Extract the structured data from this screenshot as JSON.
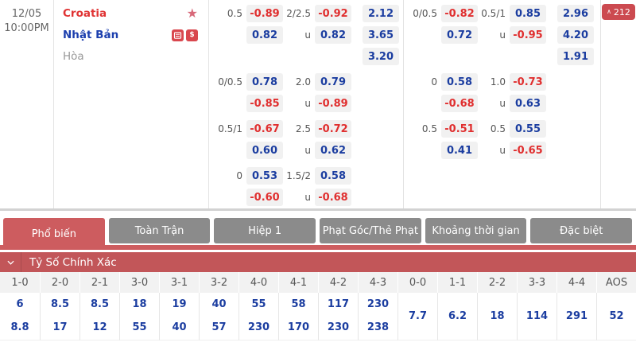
{
  "match": {
    "date": "12/05",
    "time": "10:00PM",
    "teams": [
      {
        "name": "Croatia"
      },
      {
        "name": "Nhật Bản"
      },
      {
        "name": "Hòa"
      }
    ],
    "more_markets": {
      "count": "212"
    }
  },
  "odds_panel": {
    "groups_left": [
      {
        "lines": [
          {
            "hdp_line": "0.5",
            "hdp": {
              "v": "-0.89",
              "c": "red"
            },
            "ou_line": "2/2.5",
            "ou": {
              "v": "-0.92",
              "c": "red"
            },
            "x2": "2.12"
          },
          {
            "hdp_line": "",
            "hdp": {
              "v": "0.82",
              "c": "blue"
            },
            "ou_line": "u",
            "ou": {
              "v": "0.82",
              "c": "blue"
            },
            "x2": "3.65"
          },
          {
            "hdp_line": "",
            "ou_line": "",
            "x2": "3.20"
          }
        ]
      },
      {
        "lines": [
          {
            "hdp_line": "0/0.5",
            "hdp": {
              "v": "0.78",
              "c": "blue"
            },
            "ou_line": "2.0",
            "ou": {
              "v": "0.79",
              "c": "blue"
            }
          },
          {
            "hdp_line": "",
            "hdp": {
              "v": "-0.85",
              "c": "red"
            },
            "ou_line": "u",
            "ou": {
              "v": "-0.89",
              "c": "red"
            }
          }
        ]
      },
      {
        "lines": [
          {
            "hdp_line": "0.5/1",
            "hdp": {
              "v": "-0.67",
              "c": "red"
            },
            "ou_line": "2.5",
            "ou": {
              "v": "-0.72",
              "c": "red"
            }
          },
          {
            "hdp_line": "",
            "hdp": {
              "v": "0.60",
              "c": "blue"
            },
            "ou_line": "u",
            "ou": {
              "v": "0.62",
              "c": "blue"
            }
          }
        ]
      },
      {
        "lines": [
          {
            "hdp_line": "0",
            "hdp": {
              "v": "0.53",
              "c": "blue"
            },
            "ou_line": "1.5/2",
            "ou": {
              "v": "0.58",
              "c": "blue"
            }
          },
          {
            "hdp_line": "",
            "hdp": {
              "v": "-0.60",
              "c": "red"
            },
            "ou_line": "u",
            "ou": {
              "v": "-0.68",
              "c": "red"
            }
          }
        ]
      }
    ],
    "groups_right": [
      {
        "lines": [
          {
            "hdp_line": "0/0.5",
            "hdp": {
              "v": "-0.82",
              "c": "red"
            },
            "ou_line": "0.5/1",
            "ou": {
              "v": "0.85",
              "c": "blue"
            },
            "x2": "2.96"
          },
          {
            "hdp_line": "",
            "hdp": {
              "v": "0.72",
              "c": "blue"
            },
            "ou_line": "u",
            "ou": {
              "v": "-0.95",
              "c": "red"
            },
            "x2": "4.20"
          },
          {
            "hdp_line": "",
            "ou_line": "",
            "x2": "1.91"
          }
        ]
      },
      {
        "lines": [
          {
            "hdp_line": "0",
            "hdp": {
              "v": "0.58",
              "c": "blue"
            },
            "ou_line": "1.0",
            "ou": {
              "v": "-0.73",
              "c": "red"
            }
          },
          {
            "hdp_line": "",
            "hdp": {
              "v": "-0.68",
              "c": "red"
            },
            "ou_line": "u",
            "ou": {
              "v": "0.63",
              "c": "blue"
            }
          }
        ]
      },
      {
        "lines": [
          {
            "hdp_line": "0.5",
            "hdp": {
              "v": "-0.51",
              "c": "red"
            },
            "ou_line": "0.5",
            "ou": {
              "v": "0.55",
              "c": "blue"
            }
          },
          {
            "hdp_line": "",
            "hdp": {
              "v": "0.41",
              "c": "blue"
            },
            "ou_line": "u",
            "ou": {
              "v": "-0.65",
              "c": "red"
            }
          }
        ]
      }
    ]
  },
  "tabs": [
    {
      "id": "pho-bien",
      "label": "Phổ biến",
      "active": true
    },
    {
      "id": "toan-tran",
      "label": "Toàn Trận",
      "active": false
    },
    {
      "id": "hiep-1",
      "label": "Hiệp 1",
      "active": false
    },
    {
      "id": "phat-goc-the-phat",
      "label": "Phạt Góc/Thẻ Phạt",
      "active": false
    },
    {
      "id": "khoang-thoi-gian",
      "label": "Khoảng thời gian",
      "active": false
    },
    {
      "id": "dac-biet",
      "label": "Đặc biệt",
      "active": false
    }
  ],
  "correct_score": {
    "title": "Tỷ Số Chính Xác",
    "columns": [
      {
        "score": "1-0",
        "odds": [
          "6",
          "8.8"
        ]
      },
      {
        "score": "2-0",
        "odds": [
          "8.5",
          "17"
        ]
      },
      {
        "score": "2-1",
        "odds": [
          "8.5",
          "12"
        ]
      },
      {
        "score": "3-0",
        "odds": [
          "18",
          "55"
        ]
      },
      {
        "score": "3-1",
        "odds": [
          "19",
          "40"
        ]
      },
      {
        "score": "3-2",
        "odds": [
          "40",
          "57"
        ]
      },
      {
        "score": "4-0",
        "odds": [
          "55",
          "230"
        ]
      },
      {
        "score": "4-1",
        "odds": [
          "58",
          "170"
        ]
      },
      {
        "score": "4-2",
        "odds": [
          "117",
          "230"
        ]
      },
      {
        "score": "4-3",
        "odds": [
          "230",
          "238"
        ]
      },
      {
        "score": "0-0",
        "odds": [
          "7.7"
        ]
      },
      {
        "score": "1-1",
        "odds": [
          "6.2"
        ]
      },
      {
        "score": "2-2",
        "odds": [
          "18"
        ]
      },
      {
        "score": "3-3",
        "odds": [
          "114"
        ]
      },
      {
        "score": "4-4",
        "odds": [
          "291"
        ]
      },
      {
        "score": "AOS",
        "odds": [
          "52"
        ]
      }
    ]
  },
  "icons": {
    "favorite": "star-icon",
    "team_badges": [
      "ticket-icon",
      "dollar-icon"
    ],
    "more": "chevron-up-icon",
    "section_toggle": "chevron-down-icon",
    "dollar_glyph": "$"
  },
  "colors": {
    "accent_red": "#cd5c5f",
    "section_header_red": "#c25659",
    "odds_red": "#e02f2f",
    "odds_blue": "#1b3da0",
    "tab_gray": "#8b8b8b",
    "chip_bg": "#f1f1f1",
    "badge_red": "#d9474e"
  }
}
